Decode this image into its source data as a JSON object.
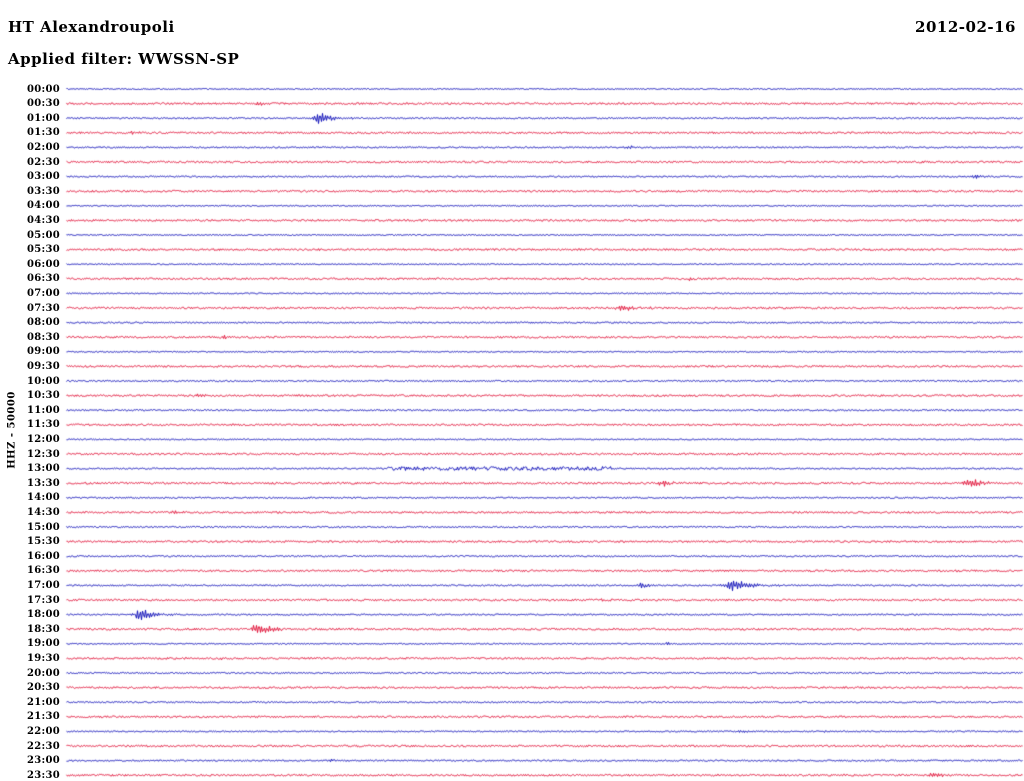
{
  "header": {
    "station": "HT Alexandroupoli",
    "date": "2012-02-16",
    "filter": "Applied filter: WWSSN-SP"
  },
  "y_axis": {
    "label": "HHZ - 50000"
  },
  "chart_data": {
    "type": "line",
    "subtype": "helicorder-seismogram",
    "title": "HT Alexandroupoli",
    "date": "2012-02-16",
    "filter": "WWSSN-SP",
    "channel_scale_label": "HHZ - 50000",
    "minutes_per_row": 30,
    "x_axis": {
      "start": "00:00",
      "end": "24:00",
      "tick_labels_every_min": 30
    },
    "legend": "off",
    "grid": "off",
    "trace_colors": {
      "blue": "#1010b8",
      "red": "#e01238"
    },
    "rows": [
      {
        "label": "00:00",
        "color": "blue",
        "noise": 0.55,
        "events": []
      },
      {
        "label": "00:30",
        "color": "red",
        "noise": 0.9,
        "events": [
          {
            "x": 0.201,
            "t_min": 6.0,
            "amp": 2.0,
            "rise": 2,
            "decay": 6
          }
        ]
      },
      {
        "label": "01:00",
        "color": "blue",
        "noise": 0.7,
        "events": [
          {
            "x": 0.264,
            "t_min": 7.9,
            "amp": 6.5,
            "rise": 4,
            "decay": 14
          }
        ]
      },
      {
        "label": "01:30",
        "color": "red",
        "noise": 0.9,
        "events": [
          {
            "x": 0.07,
            "t_min": 2.1,
            "amp": 2.0,
            "rise": 2,
            "decay": 5
          }
        ]
      },
      {
        "label": "02:00",
        "color": "blue",
        "noise": 0.7,
        "events": [
          {
            "x": 0.588,
            "t_min": 17.6,
            "amp": 2.0,
            "rise": 2,
            "decay": 6
          }
        ]
      },
      {
        "label": "02:30",
        "color": "red",
        "noise": 0.9,
        "events": []
      },
      {
        "label": "03:00",
        "color": "blue",
        "noise": 0.7,
        "events": [
          {
            "x": 0.951,
            "t_min": 28.5,
            "amp": 2.2,
            "rise": 3,
            "decay": 8
          }
        ]
      },
      {
        "label": "03:30",
        "color": "red",
        "noise": 0.9,
        "events": []
      },
      {
        "label": "04:00",
        "color": "blue",
        "noise": 0.55,
        "events": []
      },
      {
        "label": "04:30",
        "color": "red",
        "noise": 0.9,
        "events": []
      },
      {
        "label": "05:00",
        "color": "blue",
        "noise": 0.55,
        "events": []
      },
      {
        "label": "05:30",
        "color": "red",
        "noise": 0.9,
        "events": [
          {
            "x": 0.266,
            "t_min": 8.0,
            "amp": 1.4,
            "rise": 2,
            "decay": 4
          }
        ]
      },
      {
        "label": "06:00",
        "color": "blue",
        "noise": 0.55,
        "events": []
      },
      {
        "label": "06:30",
        "color": "red",
        "noise": 0.9,
        "events": [
          {
            "x": 0.651,
            "t_min": 19.5,
            "amp": 1.4,
            "rise": 2,
            "decay": 4
          }
        ]
      },
      {
        "label": "07:00",
        "color": "blue",
        "noise": 0.55,
        "events": []
      },
      {
        "label": "07:30",
        "color": "red",
        "noise": 0.95,
        "events": [
          {
            "x": 0.58,
            "t_min": 17.4,
            "amp": 3.8,
            "rise": 4,
            "decay": 14
          }
        ]
      },
      {
        "label": "08:00",
        "color": "blue",
        "noise": 0.7,
        "events": []
      },
      {
        "label": "08:30",
        "color": "red",
        "noise": 0.9,
        "events": [
          {
            "x": 0.165,
            "t_min": 5.0,
            "amp": 1.8,
            "rise": 2,
            "decay": 6
          }
        ]
      },
      {
        "label": "09:00",
        "color": "blue",
        "noise": 0.55,
        "events": []
      },
      {
        "label": "09:30",
        "color": "red",
        "noise": 0.9,
        "events": []
      },
      {
        "label": "10:00",
        "color": "blue",
        "noise": 0.7,
        "events": []
      },
      {
        "label": "10:30",
        "color": "red",
        "noise": 0.9,
        "events": [
          {
            "x": 0.136,
            "t_min": 4.1,
            "amp": 2.2,
            "rise": 2,
            "decay": 6
          }
        ]
      },
      {
        "label": "11:00",
        "color": "blue",
        "noise": 0.7,
        "events": []
      },
      {
        "label": "11:30",
        "color": "red",
        "noise": 0.9,
        "events": []
      },
      {
        "label": "12:00",
        "color": "blue",
        "noise": 0.55,
        "events": []
      },
      {
        "label": "12:30",
        "color": "red",
        "noise": 0.9,
        "events": []
      },
      {
        "label": "13:00",
        "color": "blue",
        "noise": 0.7,
        "bands": [
          {
            "from": 0.335,
            "to": 0.57,
            "amp": 1.2
          }
        ],
        "events": [
          {
            "x": 0.559,
            "t_min": 16.8,
            "amp": 1.8,
            "rise": 2,
            "decay": 6
          }
        ]
      },
      {
        "label": "13:30",
        "color": "red",
        "noise": 0.95,
        "events": [
          {
            "x": 0.623,
            "t_min": 18.7,
            "amp": 3.5,
            "rise": 3,
            "decay": 10
          },
          {
            "x": 0.944,
            "t_min": 28.3,
            "amp": 4.5,
            "rise": 4,
            "decay": 16
          }
        ]
      },
      {
        "label": "14:00",
        "color": "blue",
        "noise": 0.7,
        "events": []
      },
      {
        "label": "14:30",
        "color": "red",
        "noise": 0.9,
        "events": [
          {
            "x": 0.111,
            "t_min": 3.3,
            "amp": 2.2,
            "rise": 2,
            "decay": 7
          }
        ]
      },
      {
        "label": "15:00",
        "color": "blue",
        "noise": 0.7,
        "events": []
      },
      {
        "label": "15:30",
        "color": "red",
        "noise": 0.9,
        "events": []
      },
      {
        "label": "16:00",
        "color": "blue",
        "noise": 0.7,
        "events": []
      },
      {
        "label": "16:30",
        "color": "red",
        "noise": 0.9,
        "events": []
      },
      {
        "label": "17:00",
        "color": "blue",
        "noise": 0.7,
        "events": [
          {
            "x": 0.602,
            "t_min": 18.0,
            "amp": 3.5,
            "rise": 3,
            "decay": 8
          },
          {
            "x": 0.697,
            "t_min": 20.9,
            "amp": 6.5,
            "rise": 6,
            "decay": 18
          }
        ]
      },
      {
        "label": "17:30",
        "color": "red",
        "noise": 0.9,
        "events": [
          {
            "x": 0.562,
            "t_min": 16.9,
            "amp": 1.3,
            "rise": 2,
            "decay": 4
          }
        ]
      },
      {
        "label": "18:00",
        "color": "blue",
        "noise": 0.7,
        "events": [
          {
            "x": 0.077,
            "t_min": 2.3,
            "amp": 6.5,
            "rise": 4,
            "decay": 16
          }
        ]
      },
      {
        "label": "18:30",
        "color": "red",
        "noise": 0.95,
        "events": [
          {
            "x": 0.199,
            "t_min": 6.0,
            "amp": 5.5,
            "rise": 4,
            "decay": 14
          }
        ]
      },
      {
        "label": "19:00",
        "color": "blue",
        "noise": 0.55,
        "events": [
          {
            "x": 0.628,
            "t_min": 18.8,
            "amp": 1.8,
            "rise": 2,
            "decay": 6
          }
        ]
      },
      {
        "label": "19:30",
        "color": "red",
        "noise": 0.9,
        "events": [
          {
            "x": 0.162,
            "t_min": 4.9,
            "amp": 1.4,
            "rise": 2,
            "decay": 4
          }
        ]
      },
      {
        "label": "20:00",
        "color": "blue",
        "noise": 0.7,
        "events": []
      },
      {
        "label": "20:30",
        "color": "red",
        "noise": 0.9,
        "events": []
      },
      {
        "label": "21:00",
        "color": "blue",
        "noise": 0.7,
        "events": []
      },
      {
        "label": "21:30",
        "color": "red",
        "noise": 0.9,
        "events": [
          {
            "x": 0.8,
            "t_min": 24.0,
            "amp": 1.4,
            "rise": 2,
            "decay": 5
          }
        ]
      },
      {
        "label": "22:00",
        "color": "blue",
        "noise": 0.6,
        "events": [
          {
            "x": 0.706,
            "t_min": 21.2,
            "amp": 1.8,
            "rise": 2,
            "decay": 6
          },
          {
            "x": 0.792,
            "t_min": 23.8,
            "amp": 1.5,
            "rise": 2,
            "decay": 5
          }
        ]
      },
      {
        "label": "22:30",
        "color": "red",
        "noise": 0.9,
        "events": [
          {
            "x": 0.079,
            "t_min": 2.4,
            "amp": 1.4,
            "rise": 2,
            "decay": 4
          }
        ]
      },
      {
        "label": "23:00",
        "color": "blue",
        "noise": 0.7,
        "events": [
          {
            "x": 0.276,
            "t_min": 8.3,
            "amp": 1.8,
            "rise": 2,
            "decay": 6
          }
        ]
      },
      {
        "label": "23:30",
        "color": "red",
        "noise": 0.9,
        "events": [
          {
            "x": 0.906,
            "t_min": 27.2,
            "amp": 2.4,
            "rise": 3,
            "decay": 10
          }
        ]
      }
    ]
  }
}
